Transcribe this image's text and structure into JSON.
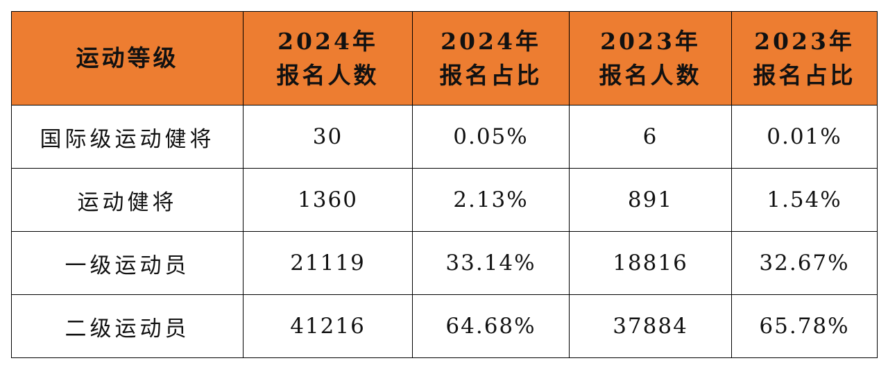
{
  "table": {
    "headers": [
      {
        "lines": [
          "运动等级"
        ]
      },
      {
        "lines": [
          "2024年",
          "报名人数"
        ]
      },
      {
        "lines": [
          "2024年",
          "报名占比"
        ]
      },
      {
        "lines": [
          "2023年",
          "报名人数"
        ]
      },
      {
        "lines": [
          "2023年",
          "报名占比"
        ]
      }
    ],
    "rows": [
      {
        "level": "国际级运动健将",
        "count_2024": "30",
        "share_2024": "0.05%",
        "count_2023": "6",
        "share_2023": "0.01%"
      },
      {
        "level": "运动健将",
        "count_2024": "1360",
        "share_2024": "2.13%",
        "count_2023": "891",
        "share_2023": "1.54%"
      },
      {
        "level": "一级运动员",
        "count_2024": "21119",
        "share_2024": "33.14%",
        "count_2023": "18816",
        "share_2023": "32.67%"
      },
      {
        "level": "二级运动员",
        "count_2024": "41216",
        "share_2024": "64.68%",
        "count_2023": "37884",
        "share_2023": "65.78%"
      }
    ]
  },
  "colors": {
    "header_bg": "#ED7D31",
    "border": "#000000"
  }
}
